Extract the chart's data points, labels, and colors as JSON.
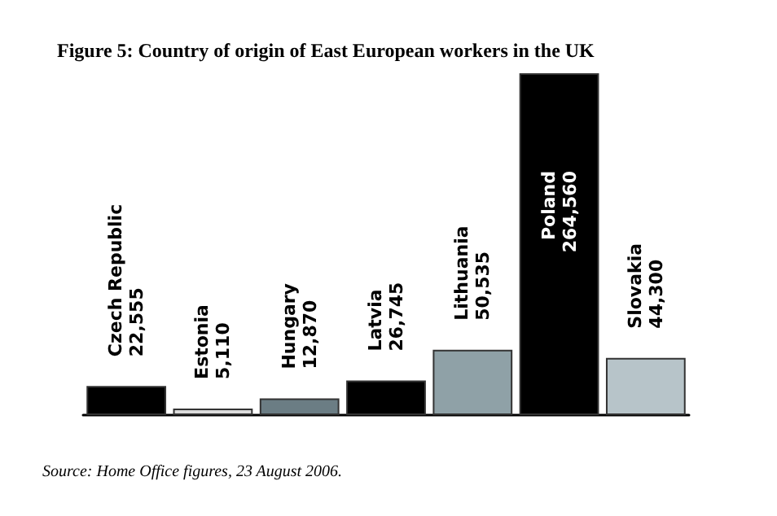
{
  "chart_data": {
    "type": "bar",
    "title": "Figure 5: Country of origin of East European workers in the UK",
    "categories": [
      "Czech Republic",
      "Estonia",
      "Hungary",
      "Latvia",
      "Lithuania",
      "Poland",
      "Slovakia"
    ],
    "values": [
      22555,
      5110,
      12870,
      26745,
      50535,
      264560,
      44300
    ],
    "value_labels": [
      "22,555",
      "5,110",
      "12,870",
      "26,745",
      "50,535",
      "264,560",
      "44,300"
    ],
    "colors": [
      "#000000",
      "#dcdcdc",
      "#6b7d84",
      "#000000",
      "#8fa1a7",
      "#000000",
      "#b7c4c9"
    ],
    "annotations": [
      "Source: Home Office figures, 23 August 2006."
    ],
    "grid": false
  }
}
